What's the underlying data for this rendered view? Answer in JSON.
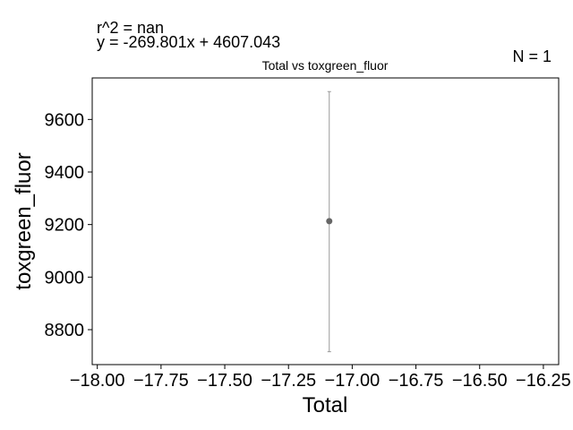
{
  "chart_data": {
    "type": "scatter",
    "title": "Total vs toxgreen_fluor",
    "xlabel": "Total",
    "ylabel": "toxgreen_fluor",
    "annotations": {
      "r2": "r^2 = nan",
      "equation": "y = -269.801x + 4607.043",
      "n": "N = 1"
    },
    "xlim": [
      -18.02,
      -16.19
    ],
    "ylim": [
      8667,
      9758
    ],
    "xticks": [
      -18.0,
      -17.75,
      -17.5,
      -17.25,
      -17.0,
      -16.75,
      -16.5,
      -16.25
    ],
    "xtick_labels": [
      "−18.00",
      "−17.75",
      "−17.50",
      "−17.25",
      "−17.00",
      "−16.75",
      "−16.50",
      "−16.25"
    ],
    "yticks": [
      8800,
      9000,
      9200,
      9400,
      9600
    ],
    "ytick_labels": [
      "8800",
      "9000",
      "9200",
      "9400",
      "9600"
    ],
    "grid": false,
    "points": [
      {
        "x": -17.09,
        "y": 9213,
        "err_low": 8716,
        "err_high": 9706
      }
    ],
    "colors": {
      "point": "#666666",
      "errorbar": "#999999",
      "axes": "#000000"
    }
  }
}
